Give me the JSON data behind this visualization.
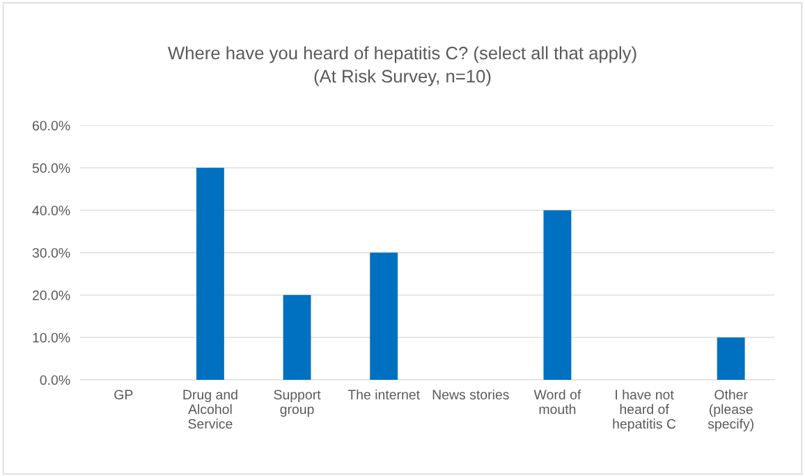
{
  "chart_data": {
    "type": "bar",
    "title": "Where have you heard of hepatitis C? (select all that apply)\n(At Risk Survey, n=10)",
    "categories": [
      "GP",
      "Drug and\nAlcohol\nService",
      "Support\ngroup",
      "The internet",
      "News stories",
      "Word of\nmouth",
      "I have not\nheard of\nhepatitis C",
      "Other\n(please\nspecify)"
    ],
    "values": [
      0,
      50,
      20,
      30,
      0,
      40,
      0,
      10
    ],
    "color": "#0070c0",
    "ylim": [
      0,
      60
    ],
    "yticks": [
      {
        "value": 0,
        "label": "0.0%"
      },
      {
        "value": 10,
        "label": "10.0%"
      },
      {
        "value": 20,
        "label": "20.0%"
      },
      {
        "value": 30,
        "label": "30.0%"
      },
      {
        "value": 40,
        "label": "40.0%"
      },
      {
        "value": 50,
        "label": "50.0%"
      },
      {
        "value": 60,
        "label": "60.0%"
      }
    ],
    "grid": "y"
  }
}
